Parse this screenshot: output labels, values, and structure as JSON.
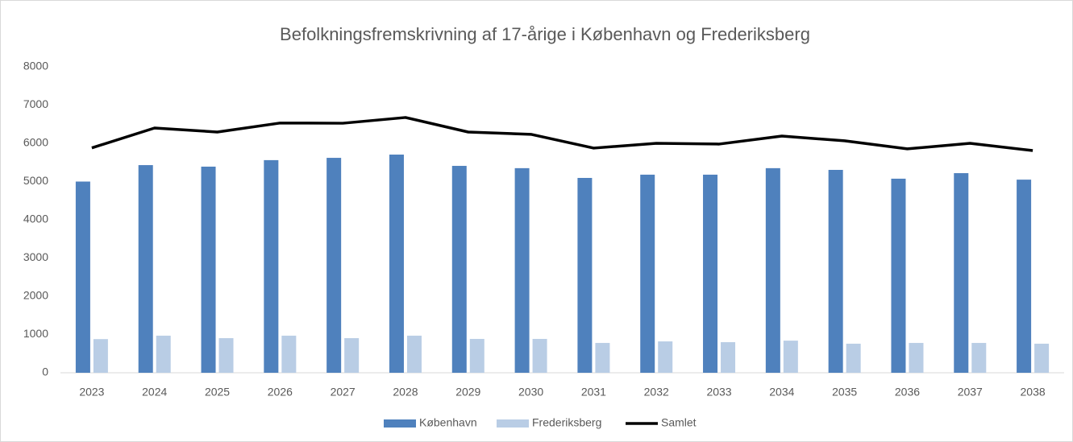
{
  "chart_data": {
    "type": "bar_line",
    "title": "Befolkningsfremskrivning af 17-årige i København og Frederiksberg",
    "categories": [
      "2023",
      "2024",
      "2025",
      "2026",
      "2027",
      "2028",
      "2029",
      "2030",
      "2031",
      "2032",
      "2033",
      "2034",
      "2035",
      "2036",
      "2037",
      "2038"
    ],
    "series": [
      {
        "name": "København",
        "color": "#4f81bd",
        "type": "bar",
        "values": [
          5000,
          5430,
          5390,
          5560,
          5620,
          5705,
          5410,
          5350,
          5095,
          5180,
          5180,
          5350,
          5305,
          5075,
          5220,
          5050
        ]
      },
      {
        "name": "Frederiksberg",
        "color": "#b9cde5",
        "type": "bar",
        "values": [
          880,
          970,
          905,
          970,
          905,
          970,
          885,
          885,
          780,
          820,
          800,
          840,
          760,
          780,
          780,
          760
        ]
      },
      {
        "name": "Samlet",
        "color": "#000000",
        "type": "line",
        "values": [
          5880,
          6400,
          6295,
          6530,
          6525,
          6675,
          6295,
          6235,
          5875,
          6000,
          5980,
          6190,
          6065,
          5855,
          6000,
          5810
        ]
      }
    ],
    "ylim": [
      0,
      8000
    ],
    "yticks": [
      0,
      1000,
      2000,
      3000,
      4000,
      5000,
      6000,
      7000,
      8000
    ],
    "grid": false,
    "legend": "bottom"
  }
}
